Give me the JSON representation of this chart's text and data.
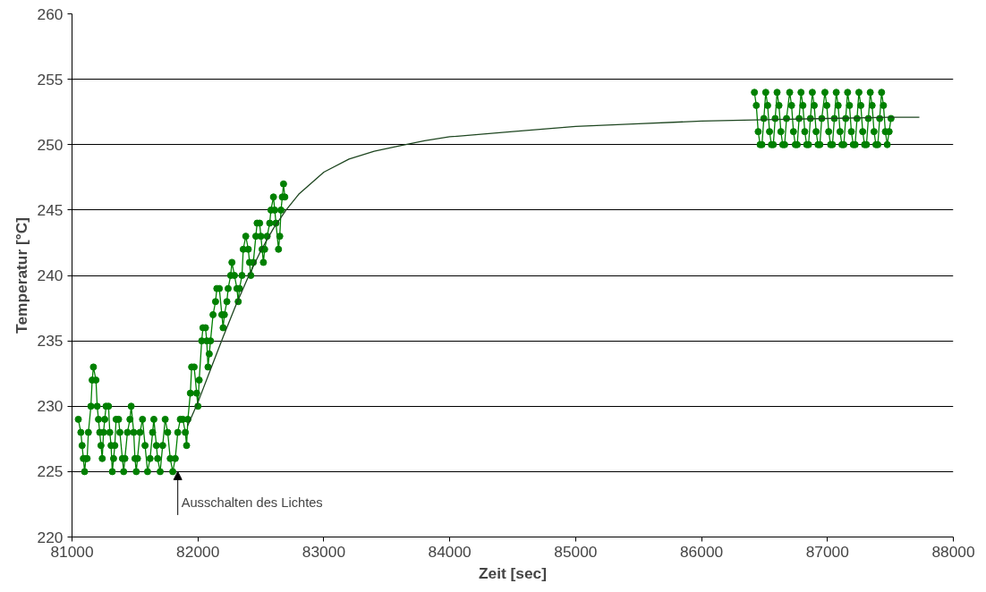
{
  "chart_data": {
    "type": "line",
    "xlabel": "Zeit [sec]",
    "ylabel": "Temperatur [°C]",
    "xlim": [
      81000,
      88000
    ],
    "xticks": [
      81000,
      82000,
      83000,
      84000,
      85000,
      86000,
      87000,
      88000
    ],
    "ylim": [
      220,
      260
    ],
    "yticks": [
      220,
      225,
      230,
      235,
      240,
      245,
      250,
      255,
      260
    ],
    "grid": "y",
    "series": [
      {
        "color": "#008000",
        "marker": "circle",
        "x": [
          81050,
          81070,
          81080,
          81090,
          81100,
          81110,
          81120,
          81130,
          81150,
          81160,
          81170,
          81190,
          81200,
          81210,
          81220,
          81230,
          81240,
          81250,
          81260,
          81270,
          81290,
          81300,
          81310,
          81320,
          81330,
          81340,
          81350,
          81370,
          81380,
          81400,
          81410,
          81420,
          81440,
          81460,
          81470,
          81490,
          81500,
          81510,
          81520,
          81540,
          81560,
          81580,
          81600,
          81620,
          81640,
          81650,
          81670,
          81680,
          81700,
          81720,
          81740,
          81760,
          81780,
          81800,
          81820,
          81840,
          81860,
          81880,
          81900,
          81910,
          81920,
          81940,
          81950,
          81970,
          81990,
          82000,
          82010,
          82030,
          82040,
          82060,
          82070,
          82080,
          82090,
          82100,
          82120,
          82140,
          82150,
          82170,
          82190,
          82200,
          82210,
          82230,
          82240,
          82260,
          82270,
          82290,
          82310,
          82320,
          82330,
          82350,
          82360,
          82380,
          82400,
          82410,
          82420,
          82440,
          82460,
          82470,
          82490,
          82500,
          82510,
          82520,
          82530,
          82550,
          82570,
          82580,
          82600,
          82610,
          82620,
          82640,
          82650,
          82660,
          82670,
          82680,
          82690,
          84500,
          86420,
          86435,
          86450,
          86465,
          86480,
          86495,
          86510,
          86525,
          86540,
          86555,
          86570,
          86585,
          86600,
          86615,
          86630,
          86645,
          86660,
          86675,
          86700,
          86715,
          86730,
          86745,
          86760,
          86775,
          86790,
          86805,
          86820,
          86835,
          86850,
          86865,
          86880,
          86895,
          86910,
          86925,
          86940,
          86955,
          86980,
          86995,
          87010,
          87025,
          87040,
          87055,
          87070,
          87085,
          87100,
          87115,
          87130,
          87145,
          87160,
          87175,
          87190,
          87205,
          87220,
          87235,
          87250,
          87265,
          87280,
          87295,
          87310,
          87325,
          87340,
          87355,
          87370,
          87385,
          87400,
          87415,
          87430,
          87445,
          87460,
          87475,
          87490,
          87505
        ],
        "values": [
          229,
          228,
          227,
          226,
          225,
          226,
          226,
          228,
          230,
          232,
          233,
          232,
          230,
          229,
          228,
          227,
          226,
          228,
          229,
          230,
          230,
          228,
          227,
          225,
          226,
          227,
          229,
          229,
          228,
          226,
          225,
          226,
          228,
          229,
          230,
          228,
          226,
          225,
          226,
          228,
          229,
          227,
          225,
          226,
          228,
          229,
          227,
          226,
          225,
          227,
          229,
          228,
          226,
          225,
          226,
          228,
          229,
          229,
          228,
          227,
          229,
          231,
          233,
          233,
          231,
          230,
          232,
          235,
          236,
          236,
          235,
          233,
          234,
          235,
          237,
          238,
          239,
          239,
          237,
          236,
          237,
          238,
          239,
          240,
          241,
          240,
          239,
          238,
          239,
          240,
          242,
          243,
          242,
          241,
          240,
          241,
          243,
          244,
          244,
          243,
          242,
          241,
          242,
          243,
          244,
          245,
          246,
          245,
          244,
          242,
          243,
          245,
          246,
          247,
          246,
          null,
          254,
          253,
          251,
          250,
          250,
          252,
          254,
          253,
          251,
          250,
          250,
          252,
          254,
          253,
          251,
          250,
          250,
          252,
          254,
          253,
          251,
          250,
          250,
          252,
          254,
          253,
          251,
          250,
          250,
          252,
          254,
          253,
          251,
          250,
          250,
          252,
          254,
          253,
          251,
          250,
          250,
          252,
          254,
          253,
          251,
          250,
          250,
          252,
          254,
          253,
          251,
          250,
          250,
          252,
          254,
          253,
          251,
          250,
          250,
          252,
          254,
          253,
          251,
          250,
          250,
          252,
          254,
          253,
          251,
          250,
          251,
          252
        ]
      },
      {
        "color": "#1e4620",
        "marker": "none",
        "x": [
          81918,
          82000,
          82100,
          82200,
          82300,
          82400,
          82500,
          82600,
          82700,
          82800,
          83000,
          83200,
          83400,
          83600,
          83800,
          84000,
          84500,
          85000,
          85500,
          86000,
          86500,
          87000,
          87500,
          87730
        ],
        "values": [
          228.5,
          230.3,
          232.8,
          235.3,
          237.7,
          239.9,
          241.9,
          243.6,
          245.0,
          246.2,
          247.9,
          248.9,
          249.5,
          249.9,
          250.3,
          250.6,
          251.0,
          251.4,
          251.6,
          251.8,
          251.9,
          252.0,
          252.1,
          252.1
        ]
      }
    ],
    "annotations": [
      {
        "text": "Ausschalten des Lichtes",
        "x": 81840,
        "y": 225
      }
    ]
  }
}
